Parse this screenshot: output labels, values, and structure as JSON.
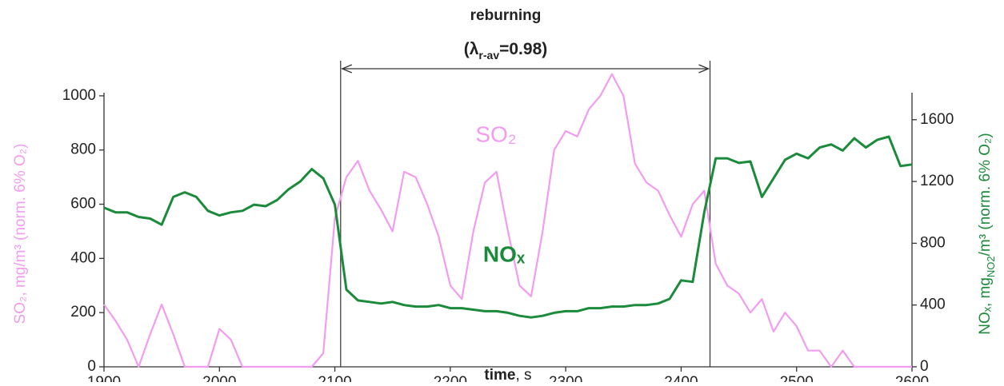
{
  "chart_data": {
    "type": "line",
    "title": "reburning",
    "subtitle_parts": [
      "(λ",
      "r-av",
      "=0.98)"
    ],
    "xlabel_parts": [
      "time",
      ", s"
    ],
    "ylabel": "SO₂, mg/m³ (norm. 6% O₂)",
    "y2label_parts": [
      "NOₓ, mg",
      "NO2",
      "/m³ (norm. 6% O₂)"
    ],
    "reburning_interval": [
      2105,
      2425
    ],
    "xlim": [
      1900,
      2600
    ],
    "xticks": [
      1900,
      2000,
      2100,
      2200,
      2300,
      2400,
      2500,
      2600
    ],
    "ylim": [
      0,
      1100
    ],
    "yticks": [
      0,
      200,
      400,
      600,
      800,
      1000
    ],
    "y2lim": [
      0,
      1930
    ],
    "y2ticks": [
      0,
      400,
      800,
      1200,
      1600
    ],
    "x": [
      1900,
      1910,
      1920,
      1930,
      1940,
      1950,
      1960,
      1970,
      1980,
      1990,
      2000,
      2010,
      2020,
      2030,
      2040,
      2050,
      2060,
      2070,
      2080,
      2090,
      2100,
      2110,
      2120,
      2130,
      2140,
      2150,
      2160,
      2170,
      2180,
      2190,
      2200,
      2210,
      2220,
      2230,
      2240,
      2250,
      2260,
      2270,
      2280,
      2290,
      2300,
      2310,
      2320,
      2330,
      2340,
      2350,
      2360,
      2370,
      2380,
      2390,
      2400,
      2410,
      2420,
      2430,
      2440,
      2450,
      2460,
      2470,
      2480,
      2490,
      2500,
      2510,
      2520,
      2530,
      2540,
      2550,
      2560,
      2570,
      2580,
      2590,
      2600
    ],
    "series": [
      {
        "name": "SO₂",
        "color": "#f29cf0",
        "axis": "y",
        "values": [
          230,
          170,
          100,
          0,
          120,
          230,
          120,
          0,
          0,
          0,
          140,
          100,
          0,
          0,
          0,
          0,
          0,
          0,
          0,
          50,
          550,
          700,
          760,
          650,
          580,
          500,
          720,
          700,
          600,
          480,
          300,
          250,
          500,
          680,
          720,
          500,
          300,
          260,
          500,
          800,
          870,
          850,
          950,
          1000,
          1080,
          1000,
          750,
          680,
          650,
          560,
          480,
          600,
          650,
          380,
          300,
          270,
          200,
          250,
          130,
          200,
          150,
          60,
          60,
          0,
          60,
          0,
          0,
          0,
          0,
          0,
          0
        ]
      },
      {
        "name": "NOₓ",
        "color": "#1b8a3a",
        "axis": "y2",
        "values": [
          1030,
          1000,
          1000,
          970,
          960,
          920,
          1100,
          1130,
          1100,
          1010,
          980,
          1000,
          1010,
          1050,
          1040,
          1080,
          1150,
          1200,
          1280,
          1220,
          1050,
          500,
          430,
          420,
          410,
          420,
          400,
          390,
          390,
          400,
          380,
          380,
          370,
          360,
          360,
          350,
          330,
          320,
          330,
          350,
          360,
          360,
          380,
          380,
          390,
          390,
          400,
          400,
          410,
          440,
          560,
          550,
          1000,
          1350,
          1350,
          1320,
          1330,
          1100,
          1220,
          1340,
          1380,
          1350,
          1420,
          1440,
          1400,
          1480,
          1420,
          1470,
          1490,
          1300,
          1310
        ]
      }
    ]
  }
}
